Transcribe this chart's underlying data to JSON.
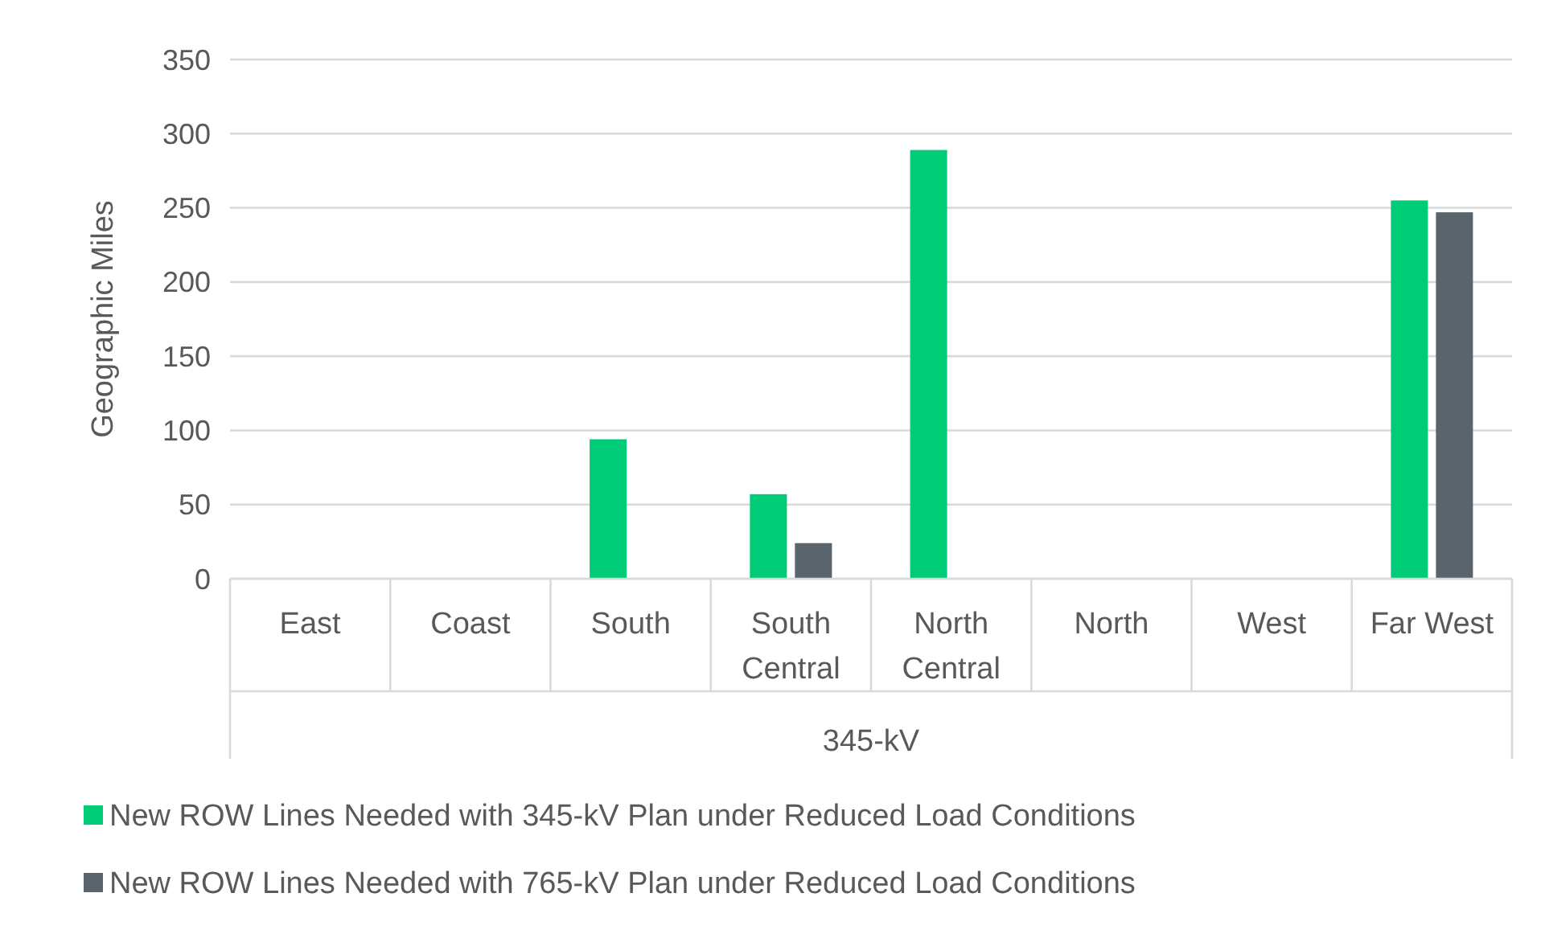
{
  "chart_data": {
    "type": "bar",
    "ylabel": "Geographic Miles",
    "xlabel": "345-kV",
    "categories": [
      "East",
      "Coast",
      "South",
      "South Central",
      "North Central",
      "North",
      "West",
      "Far West"
    ],
    "series": [
      {
        "name": "New ROW Lines Needed with 345-kV Plan under Reduced Load Conditions",
        "color": "#00cc78",
        "values": [
          0,
          0,
          94,
          57,
          289,
          0,
          0,
          255
        ]
      },
      {
        "name": "New ROW Lines Needed with 765-kV Plan under Reduced Load Conditions",
        "color": "#59646c",
        "values": [
          0,
          0,
          0,
          24,
          0,
          0,
          0,
          247
        ]
      }
    ],
    "ylim": [
      0,
      350
    ],
    "yticks": [
      0,
      50,
      100,
      150,
      200,
      250,
      300,
      350
    ],
    "grid": "y",
    "legend": "bottom"
  }
}
